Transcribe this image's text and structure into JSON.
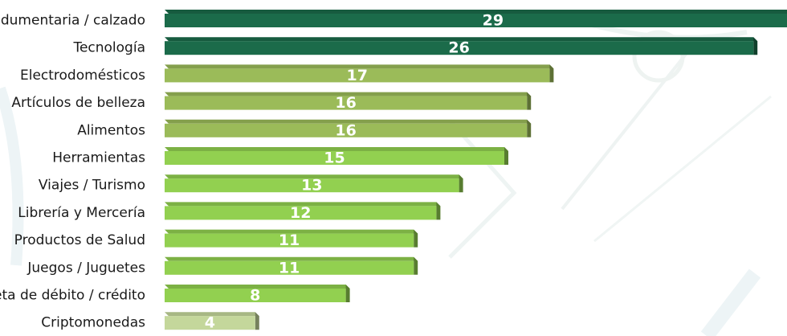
{
  "chart_data": {
    "type": "bar",
    "orientation": "horizontal",
    "categories": [
      "Indumentaria / calzado",
      "Tecnología",
      "Electrodomésticos",
      "Artículos de belleza",
      "Alimentos",
      "Herramientas",
      "Viajes / Turismo",
      "Librería y Mercería",
      "Productos de Salud",
      "Juegos / Juguetes",
      "Tarjeta de débito / crédito",
      "Criptomonedas"
    ],
    "values": [
      29,
      26,
      17,
      16,
      16,
      15,
      13,
      12,
      11,
      11,
      8,
      4
    ],
    "value_labels": [
      "29",
      "26",
      "17",
      "16",
      "16",
      "15",
      "13",
      "12",
      "11",
      "11",
      "8",
      "4"
    ],
    "title": "",
    "xlabel": "",
    "ylabel": "",
    "grid": false,
    "legend": "none",
    "colors": {
      "dark_green": "#1b6b4a",
      "olive_green": "#9bbb59",
      "light_green": "#92d050",
      "pale_green": "#c4d79b",
      "value_text": "#ffffff",
      "label_text": "#1a1a1a"
    },
    "bar_color_keys": [
      "dark_green",
      "dark_green",
      "olive_green",
      "olive_green",
      "olive_green",
      "light_green",
      "light_green",
      "light_green",
      "light_green",
      "light_green",
      "light_green",
      "pale_green"
    ]
  }
}
